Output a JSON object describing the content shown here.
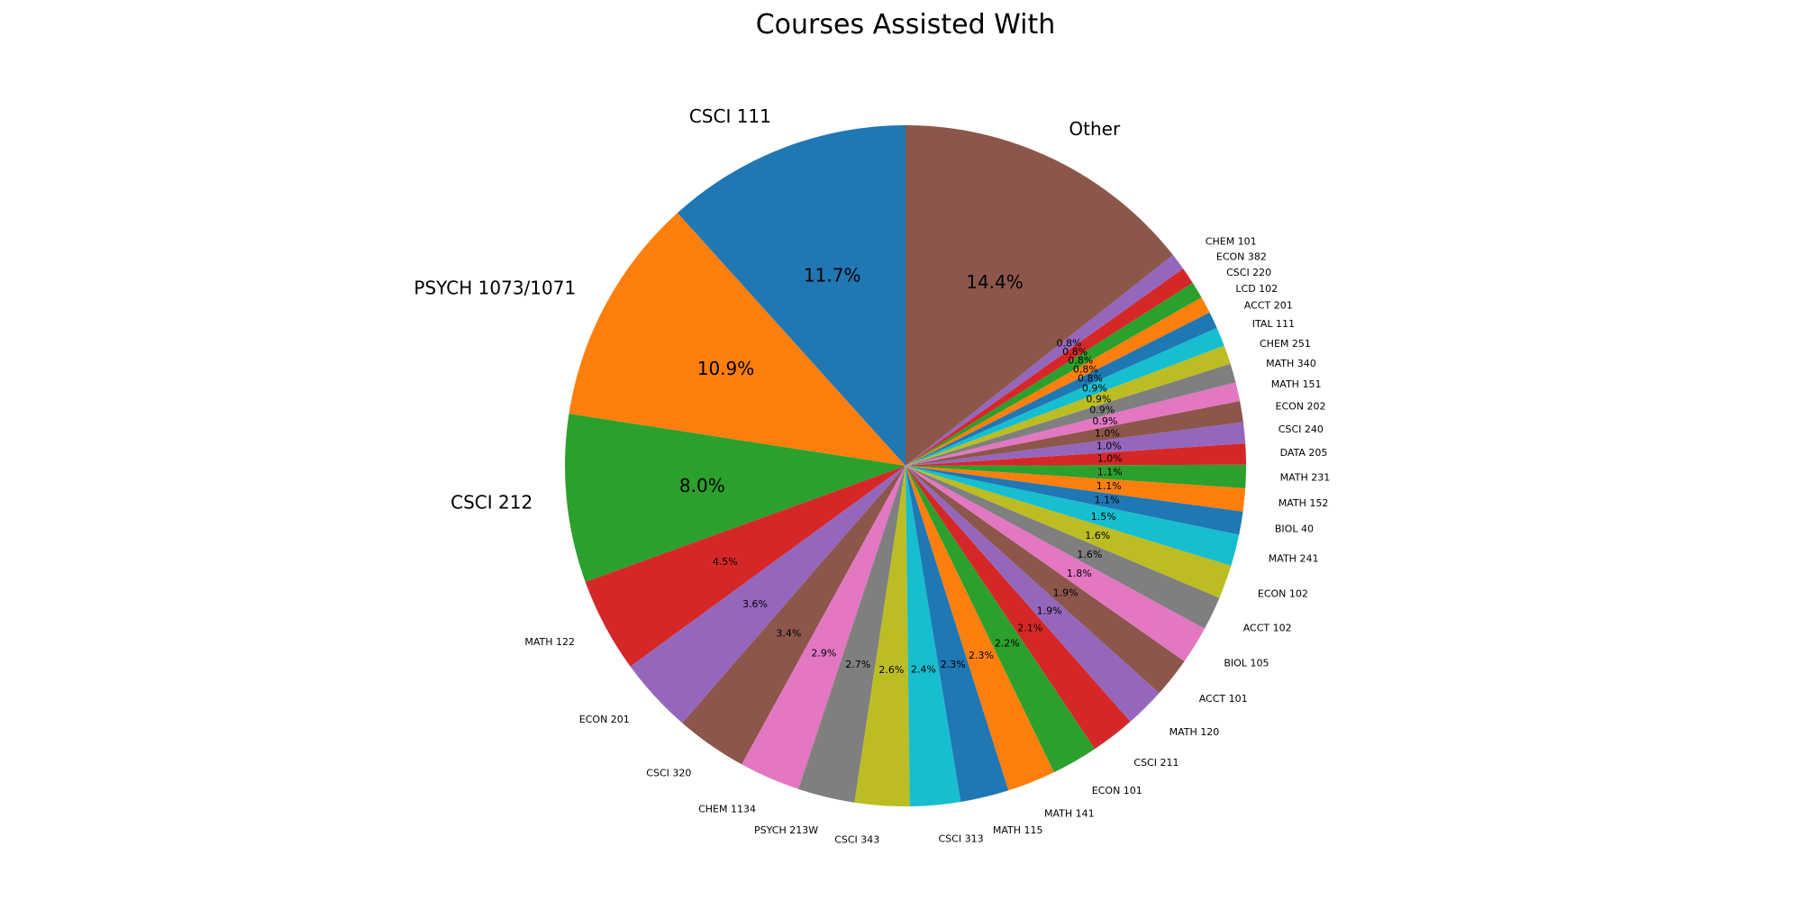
{
  "chart_data": {
    "type": "pie",
    "title": "Courses Assisted With",
    "start_angle_deg": 90,
    "direction": "counterclockwise",
    "slices": [
      {
        "label": "CSCI 111",
        "value": 11.7,
        "pct_label": "11.7%",
        "color": "#1f77b4"
      },
      {
        "label": "PSYCH 1073/1071",
        "value": 10.9,
        "pct_label": "10.9%",
        "color": "#ff7f0e"
      },
      {
        "label": "CSCI 212",
        "value": 8.0,
        "pct_label": "8.0%",
        "color": "#2ca02c"
      },
      {
        "label": "MATH 122",
        "value": 4.5,
        "pct_label": "4.5%",
        "color": "#d62728"
      },
      {
        "label": "ECON 201",
        "value": 3.6,
        "pct_label": "3.6%",
        "color": "#9467bd"
      },
      {
        "label": "CSCI 320",
        "value": 3.4,
        "pct_label": "3.4%",
        "color": "#8c564b"
      },
      {
        "label": "CHEM 1134",
        "value": 2.9,
        "pct_label": "2.9%",
        "color": "#e377c2"
      },
      {
        "label": "PSYCH 213W",
        "value": 2.7,
        "pct_label": "2.7%",
        "color": "#7f7f7f"
      },
      {
        "label": "CSCI 343",
        "value": 2.6,
        "pct_label": "2.6%",
        "color": "#bcbd22"
      },
      {
        "label": "CSCI 313",
        "value": 2.4,
        "pct_label": "2.4%",
        "color": "#17becf"
      },
      {
        "label": "MATH 115",
        "value": 2.3,
        "pct_label": "2.3%",
        "color": "#1f77b4"
      },
      {
        "label": "MATH 141",
        "value": 2.3,
        "pct_label": "2.3%",
        "color": "#ff7f0e"
      },
      {
        "label": "ECON 101",
        "value": 2.2,
        "pct_label": "2.2%",
        "color": "#2ca02c"
      },
      {
        "label": "CSCI 211",
        "value": 2.1,
        "pct_label": "2.1%",
        "color": "#d62728"
      },
      {
        "label": "MATH 120",
        "value": 1.9,
        "pct_label": "1.9%",
        "color": "#9467bd"
      },
      {
        "label": "ACCT 101",
        "value": 1.9,
        "pct_label": "1.9%",
        "color": "#8c564b"
      },
      {
        "label": "BIOL 105",
        "value": 1.8,
        "pct_label": "1.8%",
        "color": "#e377c2"
      },
      {
        "label": "ACCT 102",
        "value": 1.6,
        "pct_label": "1.6%",
        "color": "#7f7f7f"
      },
      {
        "label": "ECON 102",
        "value": 1.6,
        "pct_label": "1.6%",
        "color": "#bcbd22"
      },
      {
        "label": "MATH  241",
        "value": 1.5,
        "pct_label": "1.5%",
        "color": "#17becf"
      },
      {
        "label": "BIOL 40",
        "value": 1.1,
        "pct_label": "1.1%",
        "color": "#1f77b4"
      },
      {
        "label": "MATH 152",
        "value": 1.1,
        "pct_label": "1.1%",
        "color": "#ff7f0e"
      },
      {
        "label": "MATH 231",
        "value": 1.1,
        "pct_label": "1.1%",
        "color": "#2ca02c"
      },
      {
        "label": "DATA 205",
        "value": 1.0,
        "pct_label": "1.0%",
        "color": "#d62728"
      },
      {
        "label": "CSCI 240",
        "value": 1.0,
        "pct_label": "1.0%",
        "color": "#9467bd"
      },
      {
        "label": "ECON 202",
        "value": 1.0,
        "pct_label": "1.0%",
        "color": "#8c564b"
      },
      {
        "label": "MATH 151",
        "value": 0.9,
        "pct_label": "0.9%",
        "color": "#e377c2"
      },
      {
        "label": "MATH 340",
        "value": 0.9,
        "pct_label": "0.9%",
        "color": "#7f7f7f"
      },
      {
        "label": "CHEM 251",
        "value": 0.9,
        "pct_label": "0.9%",
        "color": "#bcbd22"
      },
      {
        "label": "ITAL 111",
        "value": 0.9,
        "pct_label": "0.9%",
        "color": "#17becf"
      },
      {
        "label": "ACCT 201",
        "value": 0.8,
        "pct_label": "0.8%",
        "color": "#1f77b4"
      },
      {
        "label": "LCD 102",
        "value": 0.8,
        "pct_label": "0.8%",
        "color": "#ff7f0e"
      },
      {
        "label": "CSCI 220",
        "value": 0.8,
        "pct_label": "0.8%",
        "color": "#2ca02c"
      },
      {
        "label": "ECON 382",
        "value": 0.8,
        "pct_label": "0.8%",
        "color": "#d62728"
      },
      {
        "label": "CHEM 101",
        "value": 0.8,
        "pct_label": "0.8%",
        "color": "#9467bd"
      },
      {
        "label": "Other",
        "value": 14.4,
        "pct_label": "14.4%",
        "color": "#8c564b"
      }
    ]
  }
}
